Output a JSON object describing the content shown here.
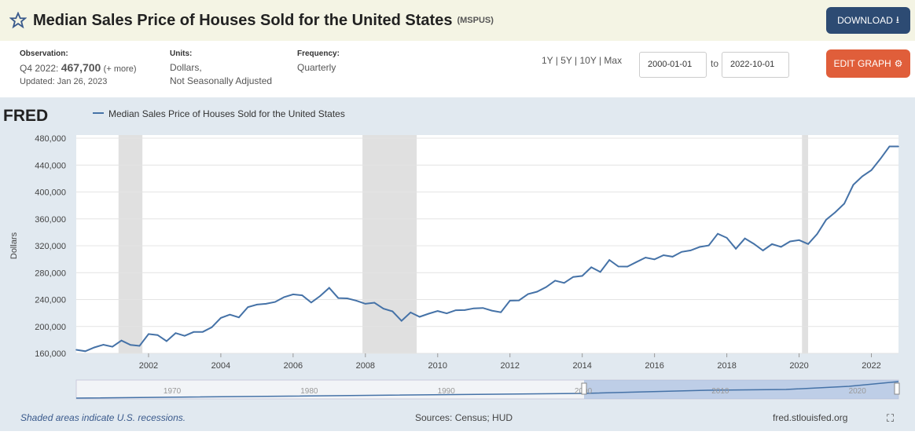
{
  "title": "Median Sales Price of Houses Sold for the United States",
  "series_id": "(MSPUS)",
  "download": "DOWNLOAD",
  "edit": "EDIT GRAPH",
  "obs": {
    "label": "Observation:",
    "period": "Q4 2022:",
    "value": "467,700",
    "more": "(+ more)",
    "updated": "Updated: Jan 26, 2023"
  },
  "units": {
    "label": "Units:",
    "l1": "Dollars,",
    "l2": "Not Seasonally Adjusted"
  },
  "freq": {
    "label": "Frequency:",
    "value": "Quarterly"
  },
  "ranges": "1Y | 5Y | 10Y | Max",
  "start": "2000-01-01",
  "to": "to",
  "end": "2022-10-01",
  "fred": "FRED",
  "footer": {
    "recession": "Shaded areas indicate U.S. recessions.",
    "sources": "Sources: Census; HUD",
    "site": "fred.stlouisfed.org"
  },
  "chart_data": {
    "type": "line",
    "ylabel": "Dollars",
    "legend": "Median Sales Price of Houses Sold for the United States",
    "ylim": [
      160000,
      480000
    ],
    "yticks": [
      "160,000",
      "200,000",
      "240,000",
      "280,000",
      "320,000",
      "360,000",
      "400,000",
      "440,000",
      "480,000"
    ],
    "xticks": [
      "2002",
      "2004",
      "2006",
      "2008",
      "2010",
      "2012",
      "2014",
      "2016",
      "2018",
      "2020",
      "2022"
    ],
    "nav_ticks": [
      "1970",
      "1980",
      "1990",
      "2000",
      "2010",
      "2020"
    ],
    "recessions": [
      [
        2001.17,
        2001.83
      ],
      [
        2007.92,
        2009.42
      ],
      [
        2020.08,
        2020.25
      ]
    ],
    "x_start": 2000.0,
    "x_step": 0.25,
    "values": [
      165300,
      163200,
      168800,
      172900,
      169800,
      179000,
      172500,
      171100,
      188700,
      187200,
      178100,
      190100,
      186000,
      191800,
      191900,
      198800,
      212700,
      217600,
      213500,
      228800,
      232500,
      233700,
      236400,
      243600,
      247700,
      246300,
      235600,
      245400,
      257400,
      242200,
      241800,
      238400,
      233700,
      235300,
      226500,
      222500,
      208400,
      220900,
      214300,
      219000,
      222900,
      219500,
      224100,
      224300,
      226900,
      227500,
      223500,
      221100,
      238400,
      238700,
      248200,
      251700,
      258400,
      268100,
      264800,
      273600,
      275200,
      288000,
      281000,
      298900,
      289200,
      289100,
      295800,
      302500,
      299800,
      306000,
      303800,
      310900,
      313100,
      318200,
      320500,
      337900,
      331800,
      315600,
      330900,
      322800,
      313000,
      322500,
      318400,
      326400,
      328400,
      322600,
      337500,
      358800,
      369800,
      382600,
      410600,
      423300,
      432500,
      449300,
      467700,
      467700
    ]
  }
}
